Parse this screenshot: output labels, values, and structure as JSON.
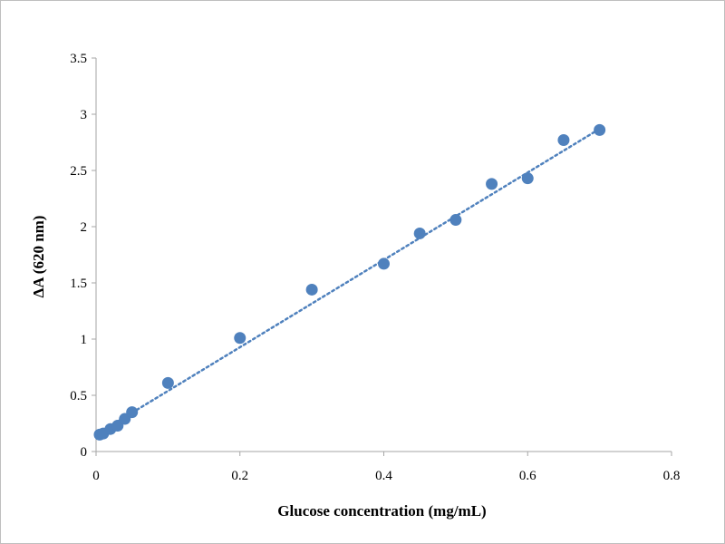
{
  "chart_data": {
    "type": "scatter",
    "title": "",
    "xlabel": "Glucose concentration (mg/mL)",
    "ylabel": "ΔA (620 nm)",
    "xlim": [
      0,
      0.8
    ],
    "ylim": [
      0,
      3.5
    ],
    "x_ticks": [
      0,
      0.2,
      0.4,
      0.6,
      0.8
    ],
    "x_tick_labels": [
      "0",
      "0.2",
      "0.4",
      "0.6",
      "0.8"
    ],
    "y_ticks": [
      0,
      0.5,
      1,
      1.5,
      2,
      2.5,
      3,
      3.5
    ],
    "y_tick_labels": [
      "0",
      "0.5",
      "1",
      "1.5",
      "2",
      "2.5",
      "3",
      "3.5"
    ],
    "grid": false,
    "legend": "none",
    "marker_color": "#4f81bd",
    "trendline": {
      "type": "linear",
      "style": "dotted",
      "color": "#4f81bd",
      "x": [
        0.005,
        0.7
      ],
      "y": [
        0.17,
        2.87
      ]
    },
    "series": [
      {
        "x": [
          0.005,
          0.01,
          0.02,
          0.03,
          0.04,
          0.05,
          0.1,
          0.2,
          0.3,
          0.4,
          0.45,
          0.5,
          0.55,
          0.6,
          0.65,
          0.7
        ],
        "y": [
          0.15,
          0.16,
          0.2,
          0.23,
          0.29,
          0.35,
          0.61,
          1.01,
          1.44,
          1.67,
          1.94,
          2.06,
          2.38,
          2.43,
          2.77,
          2.86
        ]
      }
    ]
  }
}
